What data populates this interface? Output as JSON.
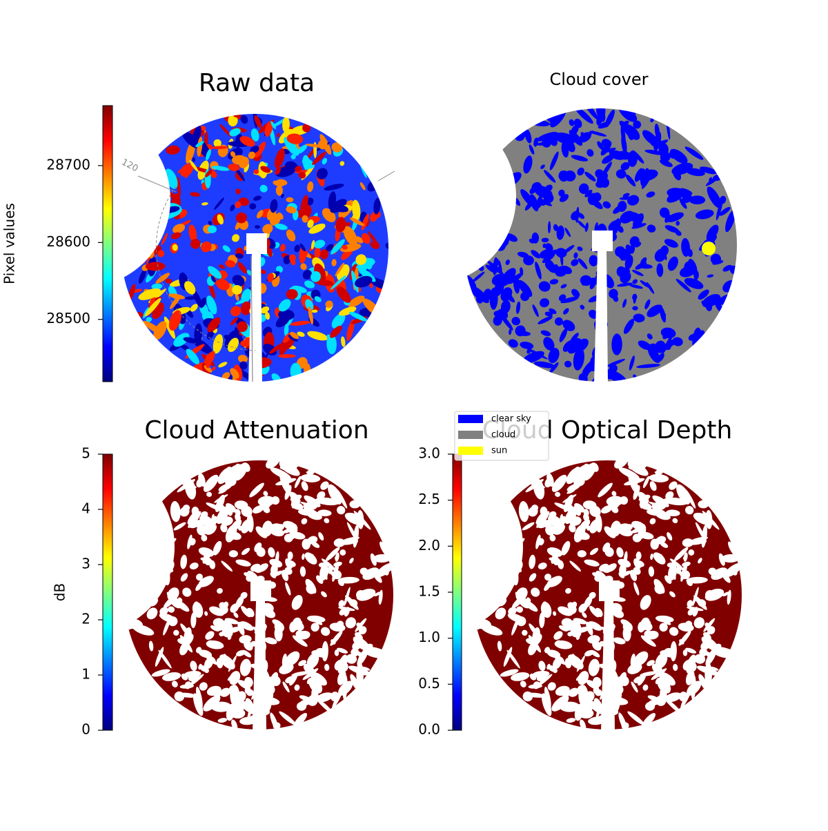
{
  "chart_data": [
    {
      "type": "image",
      "title": "Raw data",
      "colorbar_label": "Pixel values",
      "cmap": "jet",
      "clim": [
        28419,
        28778
      ],
      "cticks": [
        28500,
        28600,
        28700
      ],
      "annotation": "120"
    },
    {
      "type": "image",
      "title": "Cloud cover",
      "legend": [
        {
          "name": "clear sky",
          "color": "#0000ff"
        },
        {
          "name": "cloud",
          "color": "#808080"
        },
        {
          "name": "sun",
          "color": "#ffff00"
        }
      ]
    },
    {
      "type": "image",
      "title": "Cloud Attenuation",
      "colorbar_label": "dB",
      "cmap": "jet",
      "clim": [
        0,
        5
      ],
      "cticks": [
        0,
        1,
        2,
        3,
        4,
        5
      ]
    },
    {
      "type": "image",
      "title": "Cloud Optical Depth",
      "cmap": "jet",
      "clim": [
        0,
        3
      ],
      "cticks": [
        {
          "value": 0,
          "label": "0.0"
        },
        0.5,
        {
          "value": 1,
          "label": "1.0"
        },
        1.5,
        {
          "value": 2,
          "label": "2.0"
        },
        2.5,
        {
          "value": 3,
          "label": "3.0"
        }
      ]
    }
  ]
}
